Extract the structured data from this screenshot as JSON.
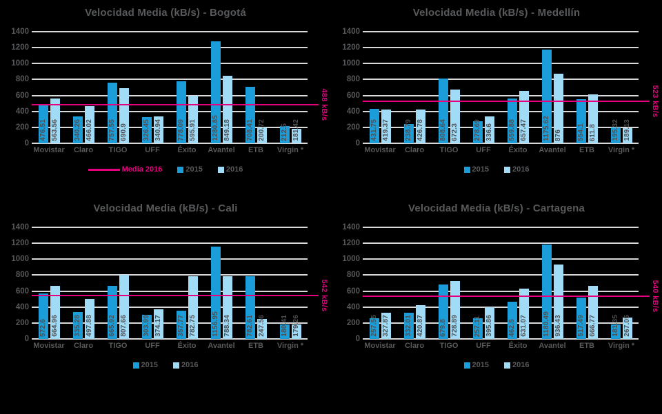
{
  "colors": {
    "series2015": "#1B9DD9",
    "series2016": "#A2DBF6",
    "media": "#E6007E",
    "title_text": "#58595B",
    "axis_text": "#58595B",
    "bar_label_text": "#4E4F52",
    "gridline": "#D9D9D9",
    "background": "#000000"
  },
  "series_names": [
    "2015",
    "2016"
  ],
  "categories": [
    "Movistar",
    "Claro",
    "TIGO",
    "UFF",
    "Éxito",
    "Avantel",
    "ETB",
    "Virgin *"
  ],
  "chart_data": [
    {
      "type": "bar",
      "title": "Velocidad Media (kB/s) - Bogotá",
      "city": "Bogotá",
      "ylim": [
        0,
        1400
      ],
      "y_tick_step": 200,
      "grid": true,
      "categories": [
        "Movistar",
        "Claro",
        "TIGO",
        "UFF",
        "Éxito",
        "Avantel",
        "ETB",
        "Virgin *"
      ],
      "series": [
        {
          "name": "2015",
          "color": "series2015",
          "values": [
            476.51,
            340.26,
            757.55,
            326.45,
            778.09,
            1280.85,
            708.41,
            212.5
          ]
        },
        {
          "name": "2016",
          "color": "series2016",
          "values": [
            563.56,
            466.02,
            690.9,
            340.94,
            595.91,
            849.18,
            200.72,
            181.42
          ]
        }
      ],
      "value_labels": [
        [
          "476.51",
          "340.26",
          "757.55",
          "326.45",
          "778.09",
          "1280.85",
          "708.41",
          "212.5"
        ],
        [
          "563.56",
          "466.02",
          "690.9",
          "340.94",
          "595.91",
          "849.18",
          "200.72",
          "181.42"
        ]
      ],
      "media_line": {
        "name": "Media 2016",
        "value": 488,
        "axis_label": "488 kB/s",
        "color": "media"
      },
      "legend": {
        "position": "bottom",
        "entries": [
          {
            "swatch": "line",
            "label": "Media 2016",
            "color": "media",
            "label_color": "media"
          },
          {
            "swatch": "square",
            "label": "2015",
            "color": "series2015",
            "label_color": "axis_text"
          },
          {
            "swatch": "square",
            "label": "2016",
            "color": "series2016",
            "label_color": "axis_text"
          }
        ]
      }
    },
    {
      "type": "bar",
      "title": "Velocidad Media (kB/s) - Medellín",
      "city": "Medellín",
      "ylim": [
        0,
        1400
      ],
      "y_tick_step": 200,
      "grid": true,
      "categories": [
        "Movistar",
        "Claro",
        "TIGO",
        "UFF",
        "Éxito",
        "Avantel",
        "ETB",
        "Virgin *"
      ],
      "series": [
        {
          "name": "2015",
          "color": "series2015",
          "values": [
            431.75,
            238.79,
            808.64,
            278.69,
            559.88,
            1175.62,
            554.1,
            195.32
          ]
        },
        {
          "name": "2016",
          "color": "series2016",
          "values": [
            419.37,
            426.78,
            672.3,
            336.6,
            657.47,
            876,
            611.8,
            189.13
          ]
        }
      ],
      "value_labels": [
        [
          "431.75",
          "238.79",
          "808.64",
          "278.69",
          "559.88",
          "1175.62",
          "554.1",
          "195.32"
        ],
        [
          "419.37",
          "426.78",
          "672.3",
          "336.6",
          "657.47",
          "876",
          "611.8",
          "189.13"
        ]
      ],
      "media_line": {
        "name": "Media 2016",
        "value": 523,
        "axis_label": "523 kB/s",
        "color": "media"
      },
      "legend": {
        "position": "bottom",
        "entries": [
          {
            "swatch": "square",
            "label": "2015",
            "color": "series2015",
            "label_color": "axis_text"
          },
          {
            "swatch": "square",
            "label": "2016",
            "color": "series2016",
            "label_color": "axis_text"
          }
        ]
      }
    },
    {
      "type": "bar",
      "title": "Velocidad Media (kB/s) - Cali",
      "city": "Cali",
      "ylim": [
        0,
        1400
      ],
      "y_tick_step": 200,
      "grid": true,
      "categories": [
        "Movistar",
        "Claro",
        "TIGO",
        "UFF",
        "Éxito",
        "Avantel",
        "ETB",
        "Virgin *"
      ],
      "series": [
        {
          "name": "2015",
          "color": "series2015",
          "values": [
            572.6,
            335.28,
            665.92,
            303.99,
            357.77,
            1156.95,
            782.61,
            180.41
          ]
        },
        {
          "name": "2016",
          "color": "series2016",
          "values": [
            664.96,
            497.88,
            807.66,
            374.17,
            782.75,
            788.34,
            247.56,
            179.26
          ]
        }
      ],
      "value_labels": [
        [
          "572.6",
          "335.28",
          "665.92",
          "303.99",
          "357.77",
          "1156.95",
          "782.61",
          "180.41"
        ],
        [
          "664.96",
          "497.88",
          "807.66",
          "374.17",
          "782.75",
          "788.34",
          "247.56",
          "179.26"
        ]
      ],
      "media_line": {
        "name": "Media 2016",
        "value": 542,
        "axis_label": "542 kB/s",
        "color": "media"
      },
      "legend": {
        "position": "bottom",
        "entries": [
          {
            "swatch": "square",
            "label": "2015",
            "color": "series2015",
            "label_color": "axis_text"
          },
          {
            "swatch": "square",
            "label": "2016",
            "color": "series2016",
            "label_color": "axis_text"
          }
        ]
      }
    },
    {
      "type": "bar",
      "title": "Velocidad Media (kB/s) - Cartagena",
      "city": "Cartagena",
      "ylim": [
        0,
        1400
      ],
      "y_tick_step": 200,
      "grid": true,
      "categories": [
        "Movistar",
        "Claro",
        "TIGO",
        "UFF",
        "Éxito",
        "Avantel",
        "ETB",
        "Virgin *"
      ],
      "series": [
        {
          "name": "2015",
          "color": "series2015",
          "values": [
            257.55,
            332.01,
            679.8,
            257.11,
            462.5,
            1180.49,
            517.49,
            181.35
          ]
        },
        {
          "name": "2016",
          "color": "series2016",
          "values": [
            327.87,
            420.87,
            728.89,
            395.86,
            631.07,
            936.43,
            666.77,
            267.05
          ]
        }
      ],
      "value_labels": [
        [
          "257.55",
          "332.01",
          "679.8",
          "257.11",
          "462.5",
          "1180.49",
          "517.49",
          "181.35"
        ],
        [
          "327.87",
          "420.87",
          "728.89",
          "395.86",
          "631.07",
          "936.43",
          "666.77",
          "267.05"
        ]
      ],
      "media_line": {
        "name": "Media 2016",
        "value": 540,
        "axis_label": "540 kB/s",
        "color": "media"
      },
      "legend": {
        "position": "bottom",
        "entries": [
          {
            "swatch": "square",
            "label": "2015",
            "color": "series2015",
            "label_color": "axis_text"
          },
          {
            "swatch": "square",
            "label": "2016",
            "color": "series2016",
            "label_color": "axis_text"
          }
        ]
      }
    }
  ]
}
